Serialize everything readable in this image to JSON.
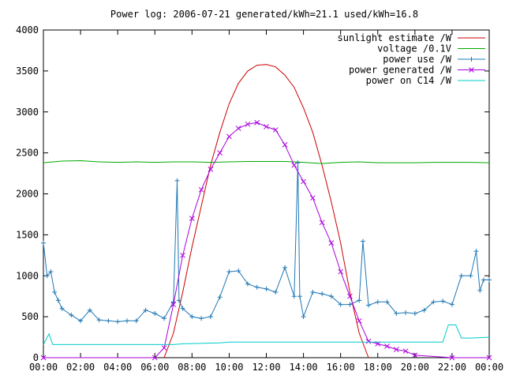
{
  "chart_data": {
    "type": "line",
    "title": "Power log: 2006-07-21 generated/kWh=21.1 used/kWh=16.8",
    "xlabel": "",
    "ylabel": "",
    "xlim": [
      0,
      24
    ],
    "ylim": [
      0,
      4000
    ],
    "x_tick_labels": [
      "00:00",
      "02:00",
      "04:00",
      "06:00",
      "08:00",
      "10:00",
      "12:00",
      "14:00",
      "16:00",
      "18:00",
      "20:00",
      "22:00",
      "00:00"
    ],
    "y_ticks": [
      0,
      500,
      1000,
      1500,
      2000,
      2500,
      3000,
      3500,
      4000
    ],
    "grid": false,
    "legend_position": "top-right",
    "series": [
      {
        "name": "sunlight estimate /W",
        "color": "#cc0000",
        "marker": "none",
        "x": [
          6.5,
          7,
          7.5,
          8,
          8.5,
          9,
          9.5,
          10,
          10.5,
          11,
          11.5,
          12,
          12.5,
          13,
          13.5,
          14,
          14.5,
          15,
          15.5,
          16,
          16.5,
          17,
          17.5
        ],
        "y": [
          0,
          300,
          800,
          1350,
          1850,
          2350,
          2750,
          3100,
          3350,
          3500,
          3570,
          3580,
          3550,
          3450,
          3300,
          3050,
          2750,
          2350,
          1900,
          1400,
          800,
          300,
          0
        ]
      },
      {
        "name": "voltage /0.1V",
        "color": "#00aa00",
        "marker": "none",
        "x": [
          0,
          1,
          2,
          3,
          4,
          5,
          6,
          7,
          8,
          9,
          10,
          11,
          12,
          13,
          14,
          15,
          16,
          17,
          18,
          19,
          20,
          21,
          22,
          23,
          24
        ],
        "y": [
          2380,
          2400,
          2405,
          2390,
          2385,
          2390,
          2385,
          2390,
          2390,
          2385,
          2390,
          2395,
          2395,
          2395,
          2385,
          2370,
          2385,
          2390,
          2380,
          2380,
          2380,
          2385,
          2385,
          2385,
          2380
        ]
      },
      {
        "name": "power use /W",
        "color": "#1f78b4",
        "marker": "plus",
        "x": [
          0,
          0.2,
          0.4,
          0.6,
          0.8,
          1,
          1.5,
          2,
          2.5,
          3,
          3.5,
          4,
          4.5,
          5,
          5.5,
          6,
          6.5,
          7,
          7.2,
          7.3,
          7.5,
          8,
          8.5,
          9,
          9.5,
          10,
          10.5,
          11,
          11.5,
          12,
          12.5,
          13,
          13.5,
          13.7,
          13.8,
          14,
          14.5,
          15,
          15.5,
          16,
          16.5,
          17,
          17.2,
          17.5,
          18,
          18.5,
          19,
          19.5,
          20,
          20.5,
          21,
          21.5,
          22,
          22.5,
          23,
          23.3,
          23.5,
          23.7,
          24
        ],
        "y": [
          1400,
          1000,
          1050,
          800,
          700,
          600,
          520,
          450,
          580,
          460,
          450,
          440,
          450,
          450,
          580,
          540,
          480,
          680,
          2160,
          700,
          600,
          500,
          480,
          500,
          740,
          1050,
          1060,
          900,
          860,
          840,
          800,
          1100,
          750,
          2380,
          750,
          500,
          800,
          780,
          750,
          650,
          650,
          700,
          1420,
          640,
          680,
          680,
          540,
          550,
          540,
          580,
          680,
          690,
          650,
          1000,
          1000,
          1300,
          820,
          950,
          950
        ]
      },
      {
        "name": "power generated /W",
        "color": "#aa00dd",
        "marker": "cross",
        "x": [
          0,
          6,
          6.5,
          7,
          7.5,
          8,
          8.5,
          9,
          9.5,
          10,
          10.5,
          11,
          11.5,
          12,
          12.5,
          13,
          13.5,
          14,
          14.5,
          15,
          15.5,
          16,
          16.5,
          17,
          17.5,
          18,
          18.5,
          19,
          19.5,
          20,
          22,
          24
        ],
        "y": [
          0,
          0,
          120,
          650,
          1250,
          1700,
          2050,
          2300,
          2500,
          2700,
          2800,
          2850,
          2870,
          2820,
          2780,
          2600,
          2350,
          2150,
          1950,
          1650,
          1400,
          1050,
          750,
          450,
          200,
          170,
          140,
          100,
          80,
          30,
          0,
          0
        ]
      },
      {
        "name": "power on C14 /W",
        "color": "#00cccc",
        "marker": "none",
        "x": [
          0,
          0.3,
          0.5,
          7,
          7.5,
          9.5,
          10,
          21.5,
          21.8,
          22.2,
          22.5,
          23,
          24
        ],
        "y": [
          160,
          290,
          160,
          160,
          170,
          180,
          190,
          190,
          400,
          400,
          240,
          240,
          250
        ]
      }
    ]
  }
}
